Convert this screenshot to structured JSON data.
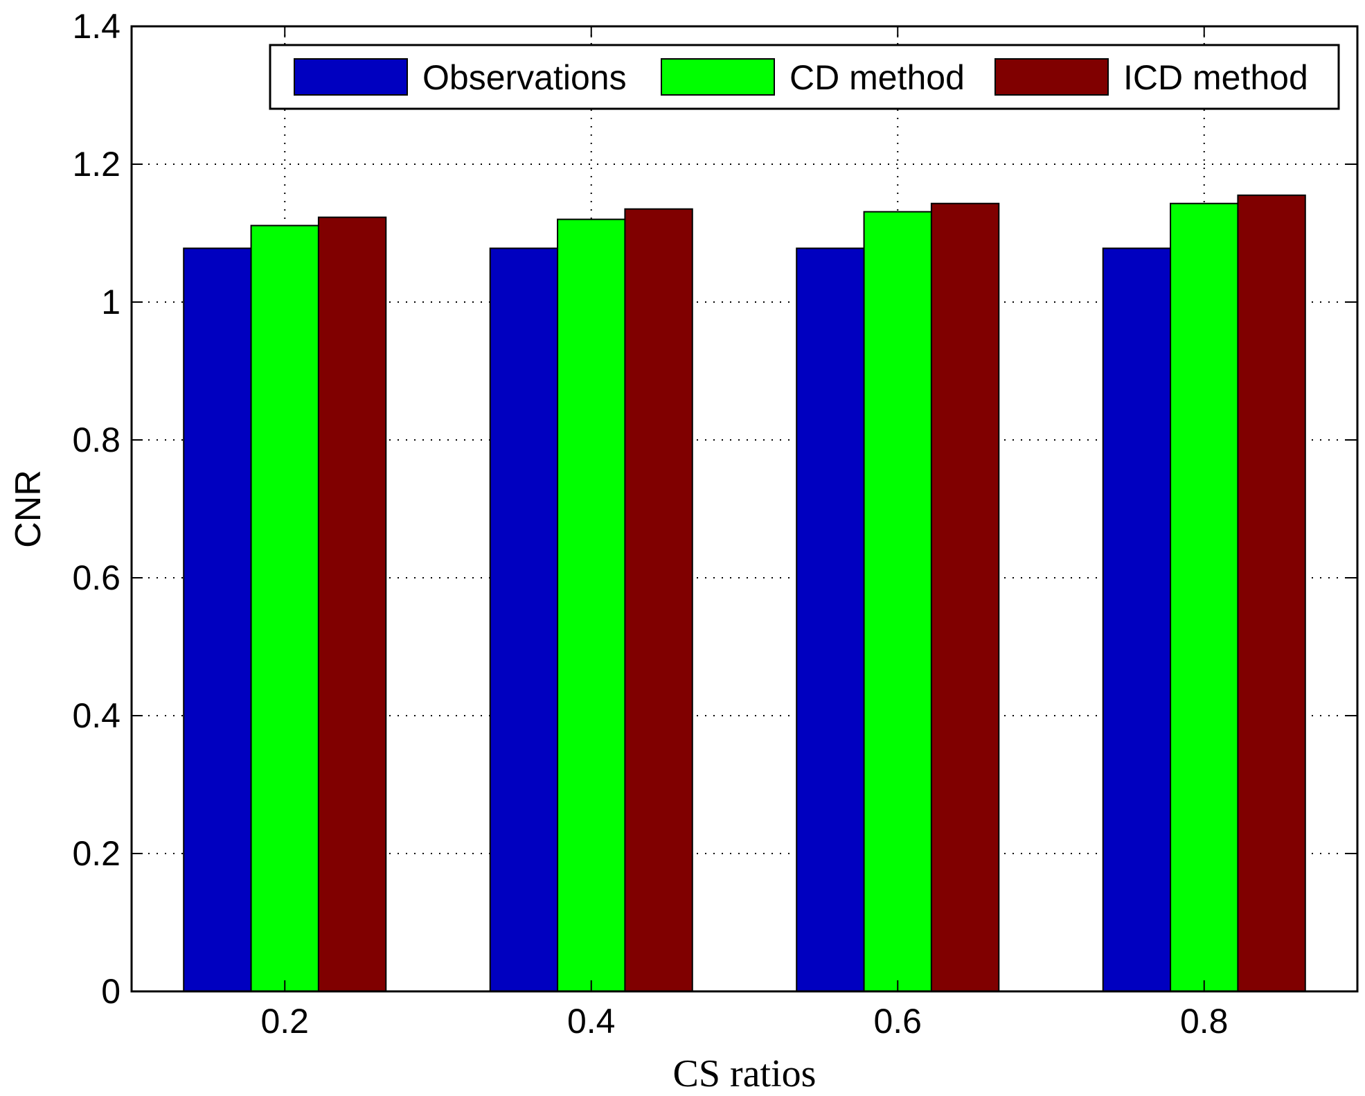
{
  "chart_data": {
    "type": "bar",
    "title": "",
    "xlabel": "CS ratios",
    "ylabel": "CNR",
    "categories": [
      "0.2",
      "0.4",
      "0.6",
      "0.8"
    ],
    "series": [
      {
        "name": "Observations",
        "color": "#0000c0",
        "values": [
          1.078,
          1.078,
          1.078,
          1.078
        ]
      },
      {
        "name": "CD method",
        "color": "#00ff00",
        "values": [
          1.111,
          1.12,
          1.131,
          1.143
        ]
      },
      {
        "name": "ICD method",
        "color": "#800000",
        "values": [
          1.123,
          1.135,
          1.143,
          1.155
        ]
      }
    ],
    "ylim": [
      0,
      1.4
    ],
    "yticks": [
      "0",
      "0.2",
      "0.4",
      "0.6",
      "0.8",
      "1",
      "1.2",
      "1.4"
    ],
    "grid": true,
    "legend_position": "top-right"
  }
}
